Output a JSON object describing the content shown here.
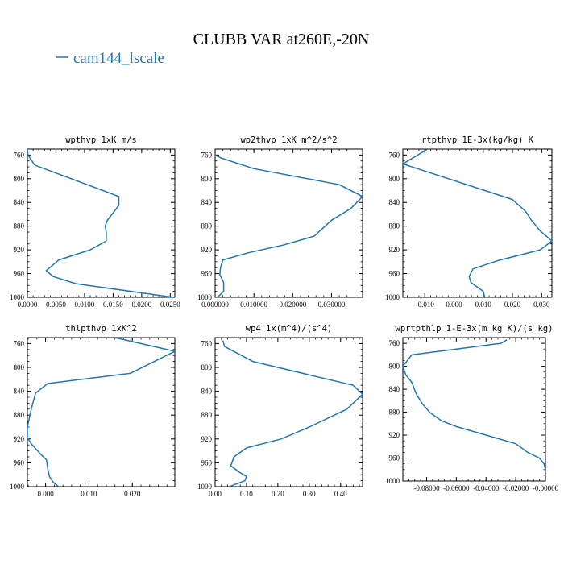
{
  "title": "CLUBB VAR at260E,-20N",
  "legend": {
    "label": "cam144_lscale",
    "color": "#1f77b4"
  },
  "chart_data": [
    {
      "type": "line",
      "title": "wpthvp  1xK m/s",
      "xlim": [
        0,
        0.0258
      ],
      "ylim": [
        1000,
        750
      ],
      "xticks": [
        "0.0000",
        "0.0050",
        "0.0100",
        "0.0150",
        "0.0200",
        "0.0250"
      ],
      "xtick_values": [
        0,
        0.005,
        0.01,
        0.015,
        0.02,
        0.025
      ],
      "yticks": [
        "760",
        "800",
        "840",
        "880",
        "920",
        "960",
        "1000"
      ],
      "ytick_values": [
        760,
        800,
        840,
        880,
        920,
        960,
        1000
      ],
      "series": [
        {
          "x": [
            0.0,
            0.0001,
            0.0013,
            0.016,
            0.016,
            0.0148,
            0.014,
            0.0136,
            0.0138,
            0.0138,
            0.011,
            0.0055,
            0.0033,
            0.0045,
            0.0085,
            0.0255
          ],
          "y": [
            750,
            760,
            777,
            830,
            845,
            860,
            870,
            880,
            890,
            905,
            920,
            937,
            955,
            965,
            977,
            1000
          ]
        }
      ]
    },
    {
      "type": "line",
      "title": "wp2thvp  1xK m^2/s^2",
      "xlim": [
        0,
        0.038
      ],
      "ylim": [
        1000,
        750
      ],
      "xticks": [
        "0.000000",
        "0.010000",
        "0.020000",
        "0.030000"
      ],
      "xtick_values": [
        0,
        0.01,
        0.02,
        0.03
      ],
      "yticks": [
        "760",
        "800",
        "840",
        "880",
        "920",
        "960",
        "1000"
      ],
      "ytick_values": [
        760,
        800,
        840,
        880,
        920,
        960,
        1000
      ],
      "series": [
        {
          "x": [
            0.0,
            0.0015,
            0.01,
            0.032,
            0.038,
            0.035,
            0.03,
            0.0275,
            0.0255,
            0.0175,
            0.0085,
            0.002,
            0.0014,
            0.0012,
            0.0022,
            0.0022,
            0.0006
          ],
          "y": [
            760,
            765,
            783,
            810,
            830,
            850,
            870,
            885,
            897,
            912,
            925,
            937,
            950,
            962,
            975,
            990,
            1000
          ]
        }
      ]
    },
    {
      "type": "line",
      "title": "rtpthvp  1E-3x(kg/kg) K",
      "xlim": [
        -0.0175,
        0.0335
      ],
      "ylim": [
        1000,
        750
      ],
      "xticks": [
        "-0.010",
        "0.000",
        "0.010",
        "0.020",
        "0.030"
      ],
      "xtick_values": [
        -0.01,
        0.0,
        0.01,
        0.02,
        0.03
      ],
      "yticks": [
        "760",
        "800",
        "840",
        "880",
        "920",
        "960",
        "1000"
      ],
      "ytick_values": [
        760,
        800,
        840,
        880,
        920,
        960,
        1000
      ],
      "series": [
        {
          "x": [
            -0.009,
            -0.0175,
            0.02,
            0.0245,
            0.0265,
            0.0295,
            0.0335,
            0.0295,
            0.015,
            0.0065,
            0.0052,
            0.0058,
            0.01,
            0.0105
          ],
          "y": [
            750,
            775,
            835,
            855,
            870,
            888,
            905,
            920,
            938,
            952,
            965,
            975,
            990,
            1000
          ]
        }
      ]
    },
    {
      "type": "line",
      "title": "thlpthvp  1xK^2",
      "xlim": [
        -0.0042,
        0.0298
      ],
      "ylim": [
        1000,
        750
      ],
      "xticks": [
        "0.000",
        "0.010",
        "0.020"
      ],
      "xtick_values": [
        0.0,
        0.01,
        0.02
      ],
      "yticks": [
        "760",
        "800",
        "840",
        "880",
        "920",
        "960",
        "1000"
      ],
      "ytick_values": [
        760,
        800,
        840,
        880,
        920,
        960,
        1000
      ],
      "series": [
        {
          "x": [
            0.016,
            0.0298,
            0.0195,
            0.0005,
            -0.0023,
            -0.0033,
            -0.0042,
            -0.0042,
            -0.0033,
            -0.0012,
            0.0002,
            0.0005,
            0.0009,
            0.0018,
            0.003
          ],
          "y": [
            750,
            773,
            810,
            827,
            843,
            870,
            900,
            918,
            928,
            945,
            955,
            970,
            983,
            993,
            1000
          ]
        }
      ]
    },
    {
      "type": "line",
      "title": "wp4  1x(m^4)/(s^4)",
      "xlim": [
        0,
        0.47
      ],
      "ylim": [
        1000,
        750
      ],
      "xticks": [
        "0.00",
        "0.10",
        "0.20",
        "0.30",
        "0.40"
      ],
      "xtick_values": [
        0,
        0.1,
        0.2,
        0.3,
        0.4
      ],
      "yticks": [
        "760",
        "800",
        "840",
        "880",
        "920",
        "960",
        "1000"
      ],
      "ytick_values": [
        760,
        800,
        840,
        880,
        920,
        960,
        1000
      ],
      "series": [
        {
          "x": [
            0.025,
            0.03,
            0.12,
            0.44,
            0.47,
            0.42,
            0.3,
            0.21,
            0.1,
            0.06,
            0.05,
            0.075,
            0.1,
            0.095,
            0.06,
            0.045
          ],
          "y": [
            755,
            765,
            790,
            830,
            845,
            870,
            900,
            920,
            935,
            950,
            965,
            975,
            983,
            990,
            997,
            1000
          ]
        }
      ]
    },
    {
      "type": "line",
      "title": "wprtpthlp  1-E-3x(m kg K)/(s kg)",
      "xlim": [
        -0.096,
        0.0
      ],
      "ylim": [
        1000,
        750
      ],
      "xticks": [
        "-0.08000",
        "-0.06000",
        "-0.04000",
        "-0.02000",
        "-0.00000"
      ],
      "xtick_values": [
        -0.08,
        -0.06,
        -0.04,
        -0.02,
        0.0
      ],
      "yticks": [
        "760",
        "800",
        "840",
        "880",
        "920",
        "960",
        "1000"
      ],
      "ytick_values": [
        760,
        800,
        840,
        880,
        920,
        960,
        1000
      ],
      "series": [
        {
          "x": [
            -0.026,
            -0.03,
            -0.09,
            -0.096,
            -0.094,
            -0.09,
            -0.087,
            -0.083,
            -0.078,
            -0.07,
            -0.06,
            -0.04,
            -0.02,
            -0.012,
            -0.004,
            -0.001,
            0.0
          ],
          "y": [
            754,
            760,
            780,
            800,
            815,
            828,
            848,
            865,
            880,
            895,
            905,
            920,
            935,
            950,
            960,
            970,
            980
          ]
        }
      ]
    }
  ]
}
